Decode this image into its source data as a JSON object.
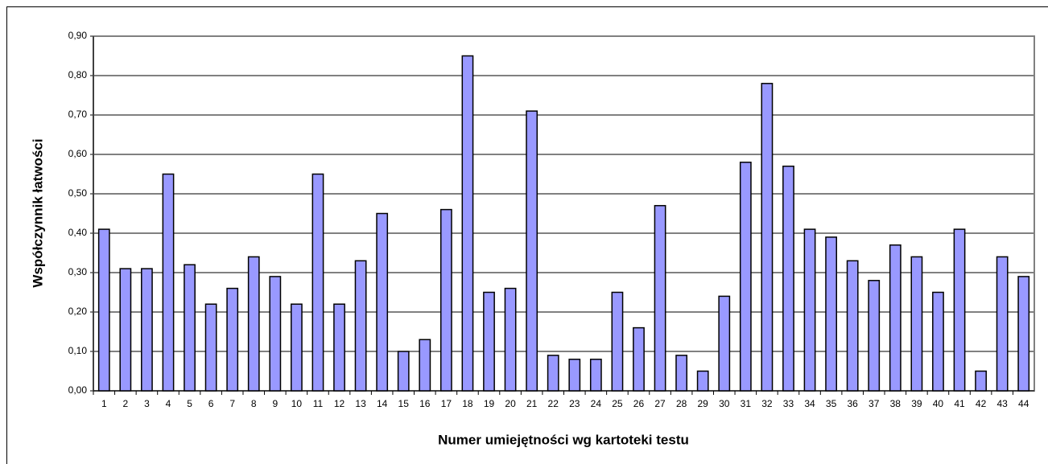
{
  "chart_data": {
    "type": "bar",
    "xlabel": "Numer umiejętności wg kartoteki testu",
    "ylabel": "Współczynnik łatwości",
    "categories": [
      "1",
      "2",
      "3",
      "4",
      "5",
      "6",
      "7",
      "8",
      "9",
      "10",
      "11",
      "12",
      "13",
      "14",
      "15",
      "16",
      "17",
      "18",
      "19",
      "20",
      "21",
      "22",
      "23",
      "24",
      "25",
      "26",
      "27",
      "28",
      "29",
      "30",
      "31",
      "32",
      "33",
      "34",
      "35",
      "36",
      "37",
      "38",
      "39",
      "40",
      "41",
      "42",
      "43",
      "44"
    ],
    "values": [
      0.41,
      0.31,
      0.31,
      0.55,
      0.32,
      0.22,
      0.26,
      0.34,
      0.29,
      0.22,
      0.55,
      0.22,
      0.33,
      0.45,
      0.1,
      0.13,
      0.46,
      0.85,
      0.25,
      0.26,
      0.71,
      0.09,
      0.08,
      0.08,
      0.25,
      0.16,
      0.47,
      0.09,
      0.05,
      0.24,
      0.58,
      0.78,
      0.57,
      0.41,
      0.39,
      0.33,
      0.28,
      0.37,
      0.34,
      0.25,
      0.41,
      0.05,
      0.34,
      0.29
    ],
    "color": "#9999ff",
    "ylim": [
      0,
      0.9
    ],
    "yticks": [
      {
        "value": 0,
        "label": "0,00"
      },
      {
        "value": 0.1,
        "label": "0,10"
      },
      {
        "value": 0.2,
        "label": "0,20"
      },
      {
        "value": 0.3,
        "label": "0,30"
      },
      {
        "value": 0.4,
        "label": "0,40"
      },
      {
        "value": 0.5,
        "label": "0,50"
      },
      {
        "value": 0.6,
        "label": "0,60"
      },
      {
        "value": 0.7,
        "label": "0,70"
      },
      {
        "value": 0.8,
        "label": "0,80"
      },
      {
        "value": 0.9,
        "label": "0,90"
      }
    ],
    "grid": true
  }
}
